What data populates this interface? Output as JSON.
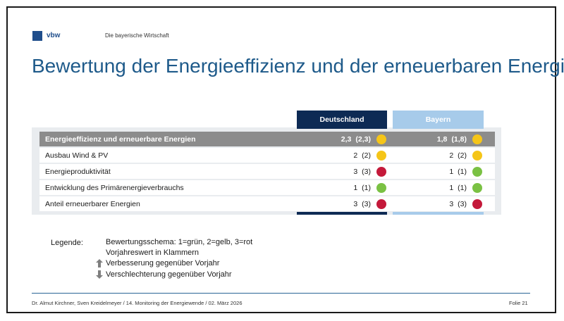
{
  "header": {
    "logo_text": "vbw",
    "organization": "Die bayerische Wirtschaft",
    "title": "Bewertung der Energieeffizienz und der erneuerbaren Energien"
  },
  "columns": {
    "germany": "Deutschland",
    "bavaria": "Bayern"
  },
  "rows": [
    {
      "label": "Energieeffizienz und erneuerbare Energien",
      "de_score": "2,3",
      "de_prev": "(2,3)",
      "de_color": "#f5c518",
      "by_score": "1,8",
      "by_prev": "(1,8)",
      "by_color": "#f5c518"
    },
    {
      "label": "Ausbau Wind & PV",
      "de_score": "2",
      "de_prev": "(2)",
      "de_color": "#f5c518",
      "by_score": "2",
      "by_prev": "(2)",
      "by_color": "#f5c518"
    },
    {
      "label": "Energieproduktivität",
      "de_score": "3",
      "de_prev": "(3)",
      "de_color": "#c4193a",
      "by_score": "1",
      "by_prev": "(1)",
      "by_color": "#7ac143"
    },
    {
      "label": "Entwicklung des Primärenergieverbrauchs",
      "de_score": "1",
      "de_prev": "(1)",
      "de_color": "#7ac143",
      "by_score": "1",
      "by_prev": "(1)",
      "by_color": "#7ac143"
    },
    {
      "label": "Anteil erneuerbarer Energien",
      "de_score": "3",
      "de_prev": "(3)",
      "de_color": "#c4193a",
      "by_score": "3",
      "by_prev": "(3)",
      "by_color": "#c4193a"
    }
  ],
  "legend": {
    "title": "Legende:",
    "scheme": "Bewertungsschema: 1=grün, 2=gelb, 3=rot",
    "previous": "Vorjahreswert in Klammern",
    "improvement": "Verbesserung gegenüber Vorjahr",
    "deterioration": "Verschlechterung gegenüber Vorjahr",
    "improvement_icon": "arrow-up-icon",
    "deterioration_icon": "arrow-down-icon"
  },
  "footer": {
    "left": "Dr. Almut Kirchner, Sven Kreidelmeyer /  14. Monitoring der Energiewende  /   02. März 2026",
    "right": "Folie 21"
  },
  "colors": {
    "green": "#7ac143",
    "yellow": "#f5c518",
    "red": "#c4193a",
    "germany_header": "#0d2a54",
    "bavaria_header": "#a7cbea",
    "title": "#1e5a8a"
  }
}
